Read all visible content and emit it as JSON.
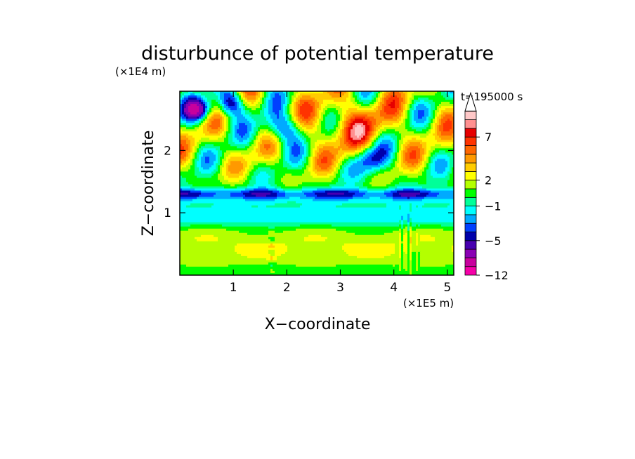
{
  "chart_data": {
    "type": "heatmap",
    "title": "disturbunce of potential temperature",
    "time_label": "t=195000 s",
    "xlabel": "X−coordinate",
    "ylabel": "Z−coordinate",
    "x_scale_label": "(×1E5 m)",
    "y_scale_label": "(×1E4 m)",
    "xlim": [
      0,
      5.12
    ],
    "ylim": [
      0,
      2.95
    ],
    "x_ticks": [
      1,
      2,
      3,
      4,
      5
    ],
    "x_tick_labels": [
      "1",
      "2",
      "3",
      "4",
      "5"
    ],
    "y_ticks": [
      1,
      2
    ],
    "y_tick_labels": [
      "1",
      "2"
    ],
    "colorbar": {
      "extend": "max",
      "levels": [
        -12,
        -10,
        -8,
        -6,
        -5,
        -4,
        -3,
        -2,
        -1,
        0,
        1,
        2,
        3,
        4,
        5,
        6,
        7,
        8,
        9,
        10
      ],
      "colors": [
        "#f500a8",
        "#c8009e",
        "#8a00b4",
        "#4800b0",
        "#0000aa",
        "#0040ff",
        "#00aaff",
        "#00ffff",
        "#00ff99",
        "#00ff00",
        "#b4ff00",
        "#ffff00",
        "#ffcc00",
        "#ff9900",
        "#ff6600",
        "#ff3300",
        "#e60000",
        "#ff9090",
        "#ffc8c8"
      ],
      "tick_values": [
        -12,
        -5,
        -1,
        2,
        7
      ],
      "tick_labels": [
        "−12",
        "−5",
        "−1",
        "2",
        "7"
      ]
    }
  }
}
